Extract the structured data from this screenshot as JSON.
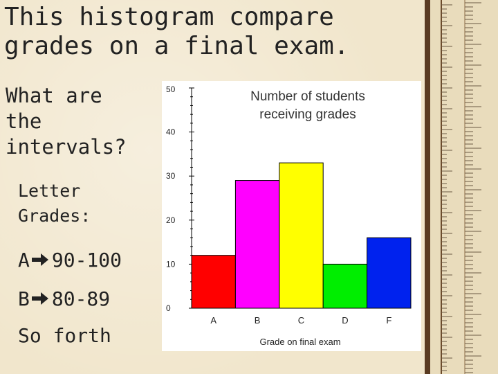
{
  "slide": {
    "title": "This histogram compare\ngrades on a final exam.",
    "question": "What are\nthe\nintervals?",
    "letter_grades_heading": "Letter\nGrades:",
    "grade_ranges": [
      {
        "letter": "A",
        "range": "90-100"
      },
      {
        "letter": "B",
        "range": "80-89"
      }
    ],
    "closing": "So forth"
  },
  "icons": {
    "arrow": "right-arrow-icon",
    "ruler": "ruler-decoration"
  },
  "chart_data": {
    "type": "bar",
    "title": "Number of students receiving grades",
    "title_lines": [
      "Number of students",
      "receiving grades"
    ],
    "xlabel": "Grade on final exam",
    "ylabel": "",
    "categories": [
      "A",
      "B",
      "C",
      "D",
      "F"
    ],
    "values": [
      12,
      29,
      33,
      10,
      16
    ],
    "colors": [
      "#ff0000",
      "#ff00ff",
      "#ffff00",
      "#00ee00",
      "#0022ee"
    ],
    "ylim": [
      0,
      50
    ],
    "yticks": [
      0,
      10,
      20,
      30,
      40,
      50
    ],
    "grid": false,
    "legend": "none"
  }
}
